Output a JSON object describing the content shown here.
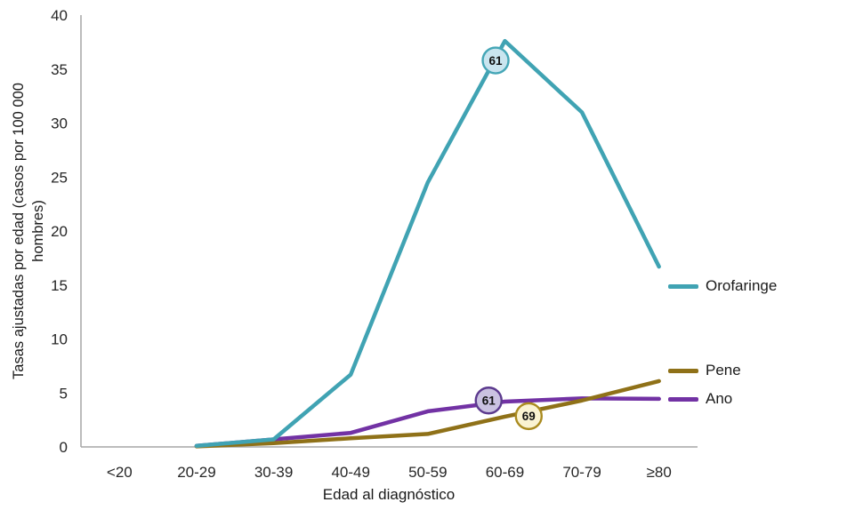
{
  "chart_data": {
    "type": "line",
    "title": "",
    "xlabel": "Edad al diagnóstico",
    "ylabel": "Tasas ajustadas por edad (casos por 100 000 hombres)",
    "ylabel_lines": [
      "Tasas ajustadas por edad (casos por 100 000",
      "hombres)"
    ],
    "categories": [
      "<20",
      "20-29",
      "30-39",
      "40-49",
      "50-59",
      "60-69",
      "70-79",
      "≥80"
    ],
    "ylim": [
      0,
      40
    ],
    "ytick_step": 5,
    "grid": false,
    "legend_position": "right-of-line-ends",
    "axis_color": "#A6A6A6",
    "text_color": "#262626",
    "series": [
      {
        "name": "Orofaringe",
        "color": "#40A3B3",
        "values": [
          null,
          0.1,
          0.7,
          6.7,
          24.5,
          37.6,
          31.0,
          16.7
        ]
      },
      {
        "name": "Pene",
        "color": "#8F7118",
        "values": [
          null,
          0.05,
          0.35,
          0.8,
          1.2,
          2.8,
          4.3,
          6.1
        ]
      },
      {
        "name": "Ano",
        "color": "#7232A4",
        "values": [
          null,
          0.1,
          0.7,
          1.3,
          3.3,
          4.2,
          4.5,
          4.45
        ]
      }
    ],
    "annotations": [
      {
        "series": "Orofaringe",
        "label": "61",
        "cat_pos": 4.88,
        "value": 35.8,
        "fill": "#C9E5EF",
        "border": "#44A6B6"
      },
      {
        "series": "Ano",
        "label": "61",
        "cat_pos": 4.79,
        "value": 4.3,
        "fill": "#CAC2E1",
        "border": "#5C3A8E"
      },
      {
        "series": "Pene",
        "label": "69",
        "cat_pos": 5.31,
        "value": 2.85,
        "fill": "#FAF3D2",
        "border": "#AA8B20"
      }
    ]
  }
}
